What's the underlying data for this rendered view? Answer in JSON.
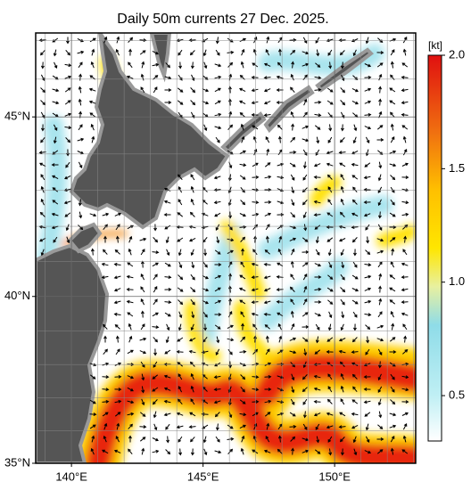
{
  "map": {
    "title": "Daily 50m currents 27 Dec. 2025.",
    "xlim": [
      138.64,
      153.08
    ],
    "ylim": [
      35,
      47.2
    ],
    "xticks": [
      {
        "value": 140,
        "label": "140°E"
      },
      {
        "value": 145,
        "label": "145°E"
      },
      {
        "value": 150,
        "label": "150°E"
      }
    ],
    "yticks": [
      {
        "value": 35,
        "label": "35°N"
      },
      {
        "value": 40,
        "label": "40°N"
      },
      {
        "value": 45,
        "label": "45°N"
      }
    ],
    "colorbar": {
      "unit": "[kt]",
      "lim": [
        0.3,
        2.0
      ],
      "ticks": [
        0.5,
        {
          "value": 1.0,
          "label": "1.0"
        },
        1.5,
        {
          "value": 2.0,
          "label": "2.0"
        }
      ]
    }
  }
}
